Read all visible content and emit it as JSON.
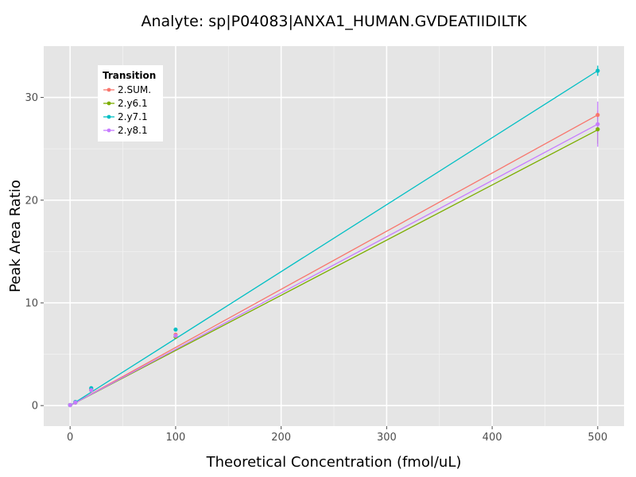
{
  "chart_data": {
    "type": "scatter",
    "title": "Analyte: sp|P04083|ANXA1_HUMAN.GVDEATIIDILTK",
    "xlabel": "Theoretical Concentration (fmol/uL)",
    "ylabel": "Peak Area Ratio",
    "xlim": [
      -25,
      525
    ],
    "ylim": [
      -2,
      35
    ],
    "x_ticks": [
      0,
      100,
      200,
      300,
      400,
      500
    ],
    "y_ticks": [
      0,
      10,
      20,
      30
    ],
    "grid": true,
    "legend": {
      "title": "Transition",
      "position": "top-left-inside"
    },
    "x": [
      0,
      5,
      20,
      100,
      500
    ],
    "series": [
      {
        "name": "2.SUM.",
        "color": "#F8766D",
        "values": [
          0.05,
          0.3,
          1.6,
          6.9,
          28.3
        ],
        "error": [
          0,
          0,
          0.1,
          0.2,
          0.4
        ],
        "fit": {
          "slope": 0.0566,
          "intercept": 0.0
        }
      },
      {
        "name": "2.y6.1",
        "color": "#7CAE00",
        "values": [
          0.05,
          0.3,
          1.5,
          6.7,
          26.9
        ],
        "error": [
          0,
          0,
          0.1,
          0.2,
          1.4
        ],
        "fit": {
          "slope": 0.0537,
          "intercept": 0.0
        }
      },
      {
        "name": "2.y7.1",
        "color": "#00BFC4",
        "values": [
          0.05,
          0.35,
          1.7,
          7.4,
          32.6
        ],
        "error": [
          0,
          0,
          0.1,
          0.2,
          0.5
        ],
        "fit": {
          "slope": 0.0652,
          "intercept": 0.0
        }
      },
      {
        "name": "2.y8.1",
        "color": "#C77CFF",
        "values": [
          0.05,
          0.3,
          1.5,
          6.8,
          27.4
        ],
        "error": [
          0,
          0,
          0.1,
          0.2,
          2.2
        ],
        "fit": {
          "slope": 0.0548,
          "intercept": 0.0
        }
      }
    ]
  }
}
